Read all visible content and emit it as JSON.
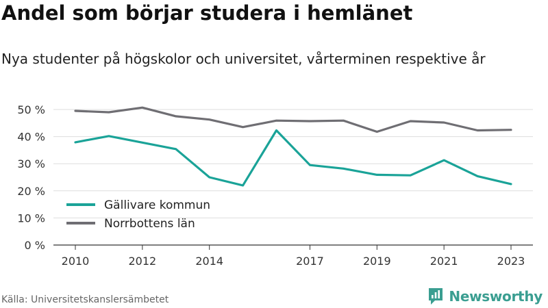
{
  "title": "Andel som börjar studera i hemlänet",
  "subtitle": "Nya studenter på högskolor och universitet, vårterminen respektive år",
  "footer": {
    "source": "Källa: Universitetskanslersämbetet"
  },
  "brand": {
    "name": "Newsworthy",
    "icon": "newsworthy-logo-icon",
    "color": "#3a9e91"
  },
  "chart_data": {
    "type": "line",
    "x": [
      2010,
      2011,
      2012,
      2013,
      2014,
      2015,
      2016,
      2017,
      2018,
      2019,
      2020,
      2021,
      2022,
      2023
    ],
    "xticks": [
      2010,
      2012,
      2014,
      2017,
      2019,
      2021,
      2023
    ],
    "xlim": [
      2010,
      2023
    ],
    "ylim": [
      0,
      50
    ],
    "yticks": [
      0,
      10,
      20,
      30,
      40,
      50
    ],
    "yticklabels": [
      "0 %",
      "10 %",
      "20 %",
      "30 %",
      "40 %",
      "50 %"
    ],
    "grid": true,
    "legend_position": "bottom-left",
    "series": [
      {
        "name": "Gällivare kommun",
        "color": "#1aa398",
        "values": [
          37.9,
          40.2,
          37.8,
          35.4,
          25.0,
          22.0,
          42.3,
          29.5,
          28.2,
          25.9,
          25.7,
          31.3,
          25.4,
          22.5
        ]
      },
      {
        "name": "Norrbottens län",
        "color": "#6f6e73",
        "values": [
          49.5,
          49.0,
          50.7,
          47.5,
          46.3,
          43.5,
          45.9,
          45.7,
          45.9,
          41.8,
          45.7,
          45.2,
          42.3,
          42.5
        ]
      }
    ]
  }
}
